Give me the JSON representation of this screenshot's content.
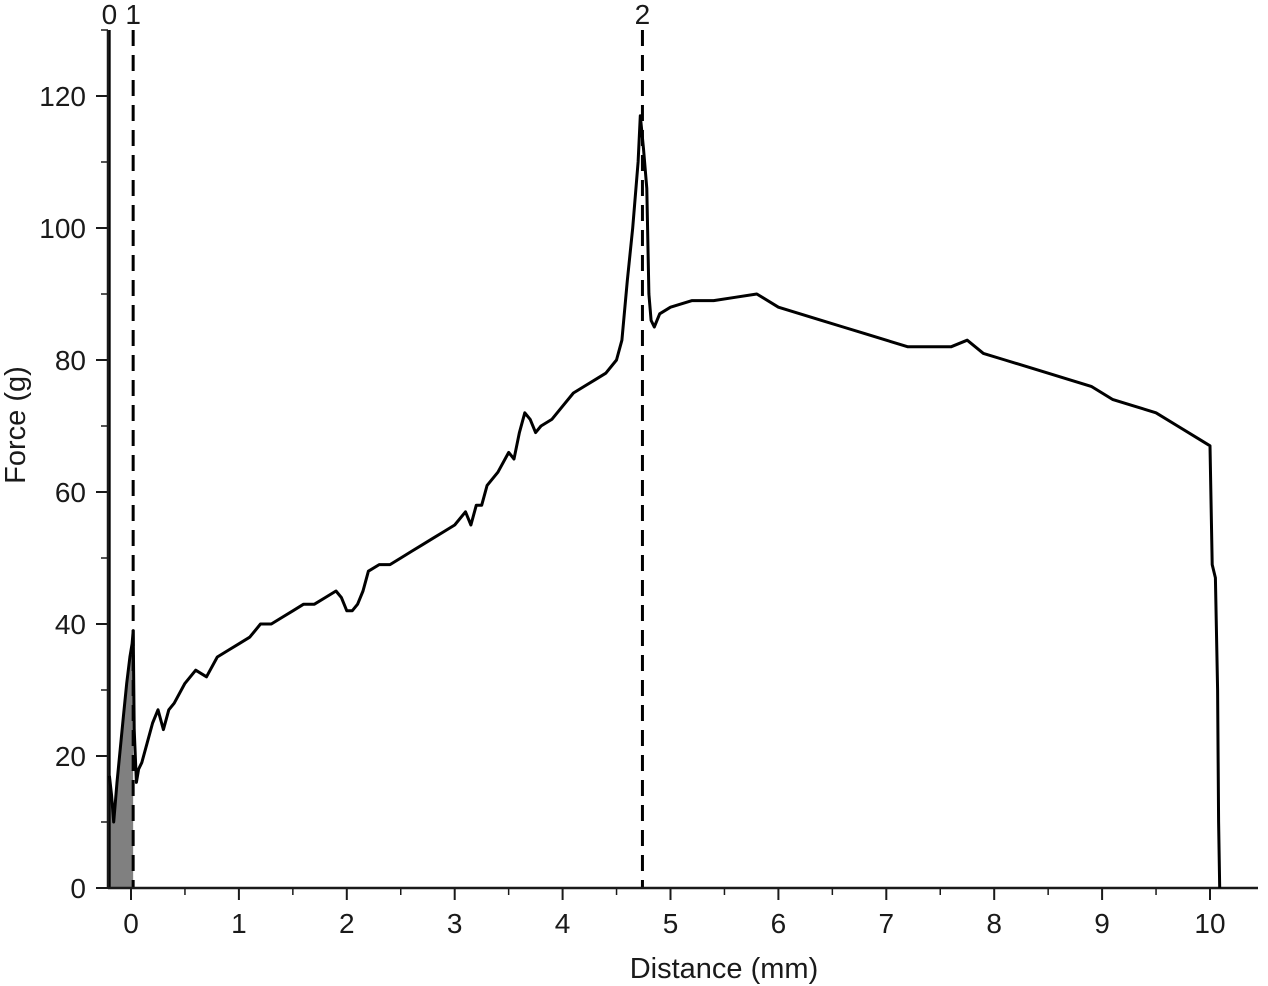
{
  "chart_data": {
    "type": "line",
    "xlabel": "Distance (mm)",
    "ylabel": "Force (g)",
    "xlim": [
      -0.25,
      10.35
    ],
    "ylim": [
      0,
      130
    ],
    "x_ticks": [
      0,
      1,
      2,
      3,
      4,
      5,
      6,
      7,
      8,
      9,
      10
    ],
    "y_ticks": [
      0,
      20,
      40,
      60,
      80,
      100,
      120
    ],
    "grid": false,
    "line_color": "#000000",
    "fill_color": "#808080",
    "shaded_region": {
      "from": -0.2,
      "to": 0.02
    },
    "markers": [
      {
        "label": "0",
        "x": -0.2,
        "style": "solid"
      },
      {
        "label": "1",
        "x": 0.02,
        "style": "dashed"
      },
      {
        "label": "2",
        "x": 4.74,
        "style": "dashed"
      }
    ],
    "series": [
      {
        "x": [
          -0.2,
          -0.18,
          -0.16,
          -0.13,
          -0.1,
          -0.07,
          -0.04,
          -0.01,
          0.01,
          0.02,
          0.03,
          0.05,
          0.07,
          0.1,
          0.15,
          0.2,
          0.25,
          0.3,
          0.35,
          0.4,
          0.5,
          0.6,
          0.7,
          0.8,
          0.9,
          1.0,
          1.1,
          1.2,
          1.3,
          1.4,
          1.5,
          1.6,
          1.7,
          1.8,
          1.9,
          1.95,
          2.0,
          2.05,
          2.1,
          2.15,
          2.2,
          2.3,
          2.4,
          2.5,
          2.6,
          2.7,
          2.8,
          2.9,
          3.0,
          3.1,
          3.15,
          3.2,
          3.25,
          3.3,
          3.4,
          3.5,
          3.55,
          3.6,
          3.65,
          3.7,
          3.75,
          3.8,
          3.9,
          4.0,
          4.1,
          4.2,
          4.3,
          4.4,
          4.5,
          4.55,
          4.6,
          4.65,
          4.7,
          4.72,
          4.75,
          4.78,
          4.8,
          4.82,
          4.85,
          4.9,
          5.0,
          5.2,
          5.4,
          5.6,
          5.8,
          6.0,
          6.2,
          6.4,
          6.6,
          6.8,
          7.0,
          7.2,
          7.4,
          7.6,
          7.75,
          7.9,
          8.1,
          8.3,
          8.5,
          8.7,
          8.9,
          9.1,
          9.3,
          9.5,
          9.7,
          9.9,
          10.0,
          10.02,
          10.05,
          10.07,
          10.08,
          10.09
        ],
        "values": [
          17,
          14,
          10,
          16,
          21,
          26,
          31,
          35,
          37,
          39,
          24,
          16,
          18,
          19,
          22,
          25,
          27,
          24,
          27,
          28,
          31,
          33,
          32,
          35,
          36,
          37,
          38,
          40,
          40,
          41,
          42,
          43,
          43,
          44,
          45,
          44,
          42,
          42,
          43,
          45,
          48,
          49,
          49,
          50,
          51,
          52,
          53,
          54,
          55,
          57,
          55,
          58,
          58,
          61,
          63,
          66,
          65,
          69,
          72,
          71,
          69,
          70,
          71,
          73,
          75,
          76,
          77,
          78,
          80,
          83,
          92,
          100,
          110,
          117,
          112,
          106,
          90,
          86,
          85,
          87,
          88,
          89,
          89,
          89.5,
          90,
          88,
          87,
          86,
          85,
          84,
          83,
          82,
          82,
          82,
          83,
          81,
          80,
          79,
          78,
          77,
          76,
          74,
          73,
          72,
          70,
          68,
          67,
          49,
          47,
          30,
          10,
          0
        ]
      }
    ]
  }
}
